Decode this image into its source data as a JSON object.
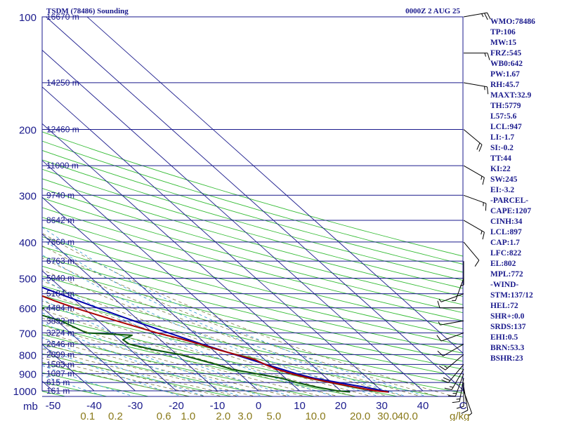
{
  "header": {
    "title": "TSDM (78486) Sounding",
    "datetime": "0000Z  2 AUG 25"
  },
  "indices": [
    "WMO:78486",
    "TP:106",
    "MW:15",
    "FRZ:545",
    "WB0:642",
    "PW:1.67",
    "RH:45.7",
    "MAXT:32.9",
    "TH:5779",
    "L57:5.6",
    "LCL:947",
    "LI:-1.7",
    "SI:-0.2",
    "TT:44",
    "KI:22",
    "SW:245",
    "EI:-3.2",
    "-PARCEL-",
    "CAPE:1207",
    "CINH:34",
    "LCL:897",
    "CAP:1.7",
    "LFC:822",
    "EL:802",
    "MPL:772",
    "-WIND-",
    "STM:137/12",
    "HEL:72",
    "SHR+:0.0",
    "SRDS:137",
    "EHI:0.5",
    "BRN:53.3",
    "BSHR:23"
  ],
  "colors": {
    "isobar": "#1a1a8c",
    "isotherm": "#1a1a8c",
    "dry_adiabat": "#33bb33",
    "moist_adiabat": "#7a7a40",
    "mixing_ratio": "#3fa0d0",
    "temperature": "#aa0000",
    "dewpoint": "#0a5a0a",
    "parcel": "#0000aa",
    "labels": "#1a1a8c",
    "mixing_labels": "#8a7a1a"
  },
  "chart_data": {
    "type": "skew-t",
    "pressure_axis_label": "mb",
    "pressure_levels": [
      100,
      200,
      300,
      400,
      500,
      600,
      700,
      800,
      900,
      1000
    ],
    "height_labels": [
      {
        "p": 100,
        "text": "16670 m"
      },
      {
        "p": 150,
        "text": "14250 m"
      },
      {
        "p": 200,
        "text": "12460 m"
      },
      {
        "p": 250,
        "text": "11000 m"
      },
      {
        "p": 300,
        "text": "9740 m"
      },
      {
        "p": 350,
        "text": "8642 m"
      },
      {
        "p": 400,
        "text": "7660 m"
      },
      {
        "p": 450,
        "text": "6763 m"
      },
      {
        "p": 500,
        "text": "5940 m"
      },
      {
        "p": 550,
        "text": "5184 m"
      },
      {
        "p": 600,
        "text": "4484 m"
      },
      {
        "p": 650,
        "text": "3832 m"
      },
      {
        "p": 700,
        "text": "3224 m"
      },
      {
        "p": 750,
        "text": "2646 m"
      },
      {
        "p": 800,
        "text": "2099 m"
      },
      {
        "p": 850,
        "text": "1583 m"
      },
      {
        "p": 900,
        "text": "1087 m"
      },
      {
        "p": 950,
        "text": "615 m"
      },
      {
        "p": 1000,
        "text": "161 m"
      }
    ],
    "temperature_ticks": [
      "-50",
      "-40",
      "-30",
      "-20",
      "-10",
      "0",
      "10",
      "20",
      "30",
      "40",
      "C"
    ],
    "temperature_tick_values": [
      -50,
      -40,
      -30,
      -20,
      -10,
      0,
      10,
      20,
      30,
      40
    ],
    "mixing_ratio_ticks": [
      "0.1",
      "0.2",
      "0.6",
      "1.0",
      "2.0",
      "3.0",
      "5.0",
      "10.0",
      "20.0",
      "30.0",
      "40.0"
    ],
    "mixing_ratio_values": [
      0.1,
      0.2,
      0.6,
      1.0,
      2.0,
      3.0,
      5.0,
      10.0,
      20.0,
      30.0,
      40.0
    ],
    "mixing_ratio_unit": "g/kg",
    "temperature_profile": [
      {
        "p": 1007,
        "t": 30.8
      },
      {
        "p": 1000,
        "t": 28.5
      },
      {
        "p": 975,
        "t": 25.7
      },
      {
        "p": 950,
        "t": 23.2
      },
      {
        "p": 925,
        "t": 20.9
      },
      {
        "p": 900,
        "t": 19.3
      },
      {
        "p": 875,
        "t": 18.5
      },
      {
        "p": 850,
        "t": 18.5
      },
      {
        "p": 825,
        "t": 18.9
      },
      {
        "p": 800,
        "t": 17.1
      },
      {
        "p": 775,
        "t": 15.3
      },
      {
        "p": 750,
        "t": 13.9
      },
      {
        "p": 725,
        "t": 12.0
      },
      {
        "p": 700,
        "t": 9.2
      },
      {
        "p": 650,
        "t": 5.0
      },
      {
        "p": 600,
        "t": 0.5
      },
      {
        "p": 575,
        "t": -1.5
      },
      {
        "p": 550,
        "t": -3.2
      },
      {
        "p": 500,
        "t": -7.0
      },
      {
        "p": 450,
        "t": -11.5
      },
      {
        "p": 400,
        "t": -17.5
      },
      {
        "p": 350,
        "t": -24.0
      },
      {
        "p": 300,
        "t": -32.0
      },
      {
        "p": 250,
        "t": -41.0
      },
      {
        "p": 200,
        "t": -52.0
      },
      {
        "p": 175,
        "t": -58.5
      },
      {
        "p": 150,
        "t": -65.5
      },
      {
        "p": 125,
        "t": -72.5
      },
      {
        "p": 110,
        "t": -77.5
      },
      {
        "p": 100,
        "t": -79.5
      }
    ],
    "dewpoint_profile": [
      {
        "p": 1007,
        "t": 21.5
      },
      {
        "p": 1000,
        "t": 19.2
      },
      {
        "p": 975,
        "t": 16.5
      },
      {
        "p": 950,
        "t": 14.9
      },
      {
        "p": 925,
        "t": 14.0
      },
      {
        "p": 900,
        "t": 10.8
      },
      {
        "p": 875,
        "t": 7.4
      },
      {
        "p": 850,
        "t": 6.7
      },
      {
        "p": 800,
        "t": 3.5
      },
      {
        "p": 775,
        "t": -0.5
      },
      {
        "p": 750,
        "t": -3.2
      },
      {
        "p": 730,
        "t": -2.5
      },
      {
        "p": 710,
        "t": 2.0
      },
      {
        "p": 700,
        "t": -8.0
      },
      {
        "p": 650,
        "t": -8.5
      },
      {
        "p": 620,
        "t": -11.5
      },
      {
        "p": 600,
        "t": -7.0
      },
      {
        "p": 580,
        "t": -23.0
      },
      {
        "p": 550,
        "t": -34.5
      },
      {
        "p": 520,
        "t": -31.0
      },
      {
        "p": 490,
        "t": -27.5
      },
      {
        "p": 450,
        "t": -30.0
      },
      {
        "p": 420,
        "t": -27.0
      },
      {
        "p": 400,
        "t": -19.0
      },
      {
        "p": 370,
        "t": -37.0
      },
      {
        "p": 340,
        "t": -33.0
      },
      {
        "p": 320,
        "t": -33.5
      },
      {
        "p": 290,
        "t": -40.0
      },
      {
        "p": 270,
        "t": -41.0
      },
      {
        "p": 250,
        "t": -50.0
      },
      {
        "p": 230,
        "t": -54.0
      },
      {
        "p": 200,
        "t": -68.0
      },
      {
        "p": 170,
        "t": -73.0
      },
      {
        "p": 150,
        "t": -80.0
      },
      {
        "p": 130,
        "t": -83.0
      },
      {
        "p": 120,
        "t": -86.0
      },
      {
        "p": 110,
        "t": -87.0
      },
      {
        "p": 100,
        "t": -95.0
      }
    ],
    "parcel_profile": [
      {
        "p": 1007,
        "t": 31.0
      },
      {
        "p": 975,
        "t": 28.0
      },
      {
        "p": 950,
        "t": 25.0
      },
      {
        "p": 925,
        "t": 22.0
      },
      {
        "p": 900,
        "t": 20.5
      },
      {
        "p": 850,
        "t": 18.8
      },
      {
        "p": 800,
        "t": 16.8
      },
      {
        "p": 750,
        "t": 14.5
      },
      {
        "p": 700,
        "t": 12.0
      },
      {
        "p": 650,
        "t": 9.2
      },
      {
        "p": 600,
        "t": 6.0
      },
      {
        "p": 550,
        "t": 2.3
      },
      {
        "p": 500,
        "t": -2.0
      },
      {
        "p": 450,
        "t": -7.2
      },
      {
        "p": 400,
        "t": -13.5
      },
      {
        "p": 350,
        "t": -21.0
      },
      {
        "p": 300,
        "t": -30.0
      },
      {
        "p": 250,
        "t": -41.5
      },
      {
        "p": 200,
        "t": -56.0
      },
      {
        "p": 150,
        "t": -74.0
      },
      {
        "p": 125,
        "t": -84.0
      },
      {
        "p": 115,
        "t": -89.0
      }
    ],
    "wind_profile": [
      {
        "p": 1000,
        "dir": 160,
        "spd": 5
      },
      {
        "p": 975,
        "dir": 170,
        "spd": 10
      },
      {
        "p": 950,
        "dir": 180,
        "spd": 10
      },
      {
        "p": 925,
        "dir": 190,
        "spd": 15
      },
      {
        "p": 900,
        "dir": 200,
        "spd": 15
      },
      {
        "p": 875,
        "dir": 210,
        "spd": 15
      },
      {
        "p": 850,
        "dir": 220,
        "spd": 20
      },
      {
        "p": 800,
        "dir": 230,
        "spd": 15
      },
      {
        "p": 750,
        "dir": 240,
        "spd": 10
      },
      {
        "p": 700,
        "dir": 250,
        "spd": 10
      },
      {
        "p": 650,
        "dir": 260,
        "spd": 5
      },
      {
        "p": 600,
        "dir": 270,
        "spd": 10
      },
      {
        "p": 550,
        "dir": 250,
        "spd": 5
      },
      {
        "p": 500,
        "dir": 200,
        "spd": 5
      },
      {
        "p": 450,
        "dir": 180,
        "spd": 5
      },
      {
        "p": 400,
        "dir": 140,
        "spd": 10
      },
      {
        "p": 350,
        "dir": 120,
        "spd": 15
      },
      {
        "p": 300,
        "dir": 110,
        "spd": 15
      },
      {
        "p": 250,
        "dir": 120,
        "spd": 15
      },
      {
        "p": 200,
        "dir": 130,
        "spd": 20
      },
      {
        "p": 150,
        "dir": 100,
        "spd": 15
      },
      {
        "p": 125,
        "dir": 90,
        "spd": 15
      },
      {
        "p": 100,
        "dir": 80,
        "spd": 25
      }
    ]
  }
}
